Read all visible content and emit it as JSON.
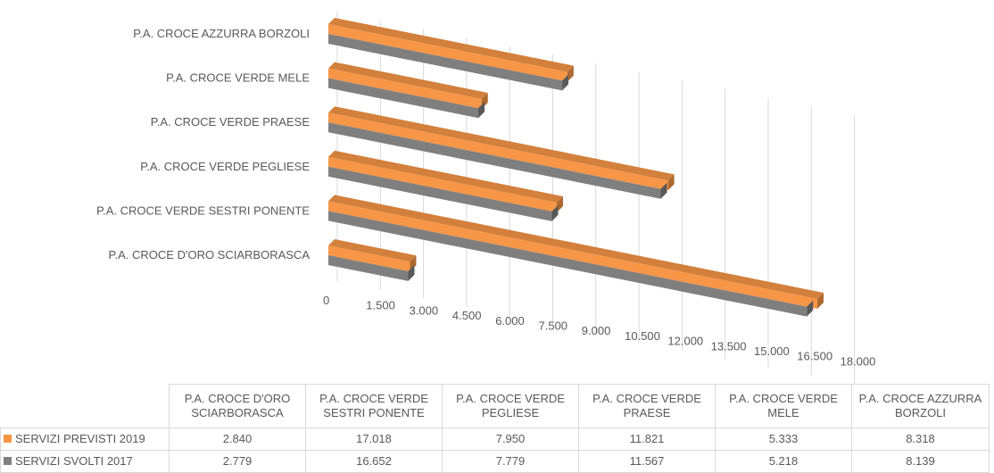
{
  "chart_data": {
    "type": "bar",
    "orientation": "horizontal",
    "categories": [
      "P.A. CROCE D'ORO SCIARBORASCA",
      "P.A. CROCE VERDE SESTRI PONENTE",
      "P.A. CROCE VERDE PEGLIESE",
      "P.A. CROCE VERDE PRAESE",
      "P.A. CROCE VERDE MELE",
      "P.A. CROCE AZZURRA BORZOLI"
    ],
    "table_headers": [
      [
        "P.A. CROCE D'ORO",
        "SCIARBORASCA"
      ],
      [
        "P.A. CROCE VERDE",
        "SESTRI PONENTE"
      ],
      [
        "P.A. CROCE VERDE",
        "PEGLIESE"
      ],
      [
        "P.A. CROCE VERDE",
        "PRAESE"
      ],
      [
        "P.A. CROCE VERDE",
        "MELE"
      ],
      [
        "P.A. CROCE AZZURRA",
        "BORZOLI"
      ]
    ],
    "series": [
      {
        "name": "SERVIZI PREVISTI 2019",
        "color": "#f79646",
        "values": [
          2840,
          17018,
          7950,
          11821,
          5333,
          8318
        ],
        "labels": [
          "2.840",
          "17.018",
          "7.950",
          "11.821",
          "5.333",
          "8.318"
        ]
      },
      {
        "name": "SERVIZI SVOLTI 2017",
        "color": "#7f7f7f",
        "values": [
          2779,
          16652,
          7779,
          11567,
          5218,
          8139
        ],
        "labels": [
          "2.779",
          "16.652",
          "7.779",
          "11.567",
          "5.218",
          "8.139"
        ]
      }
    ],
    "x_ticks": [
      0,
      1500,
      3000,
      4500,
      6000,
      7500,
      9000,
      10500,
      12000,
      13500,
      15000,
      16500,
      18000
    ],
    "x_tick_labels": [
      "0",
      "1.500",
      "3.000",
      "4.500",
      "6.000",
      "7.500",
      "9.000",
      "10.500",
      "12.000",
      "13.500",
      "15.000",
      "16.500",
      "18.000"
    ],
    "xlim": [
      0,
      18000
    ],
    "grid": true,
    "legend": "data-table",
    "style": "3d"
  }
}
